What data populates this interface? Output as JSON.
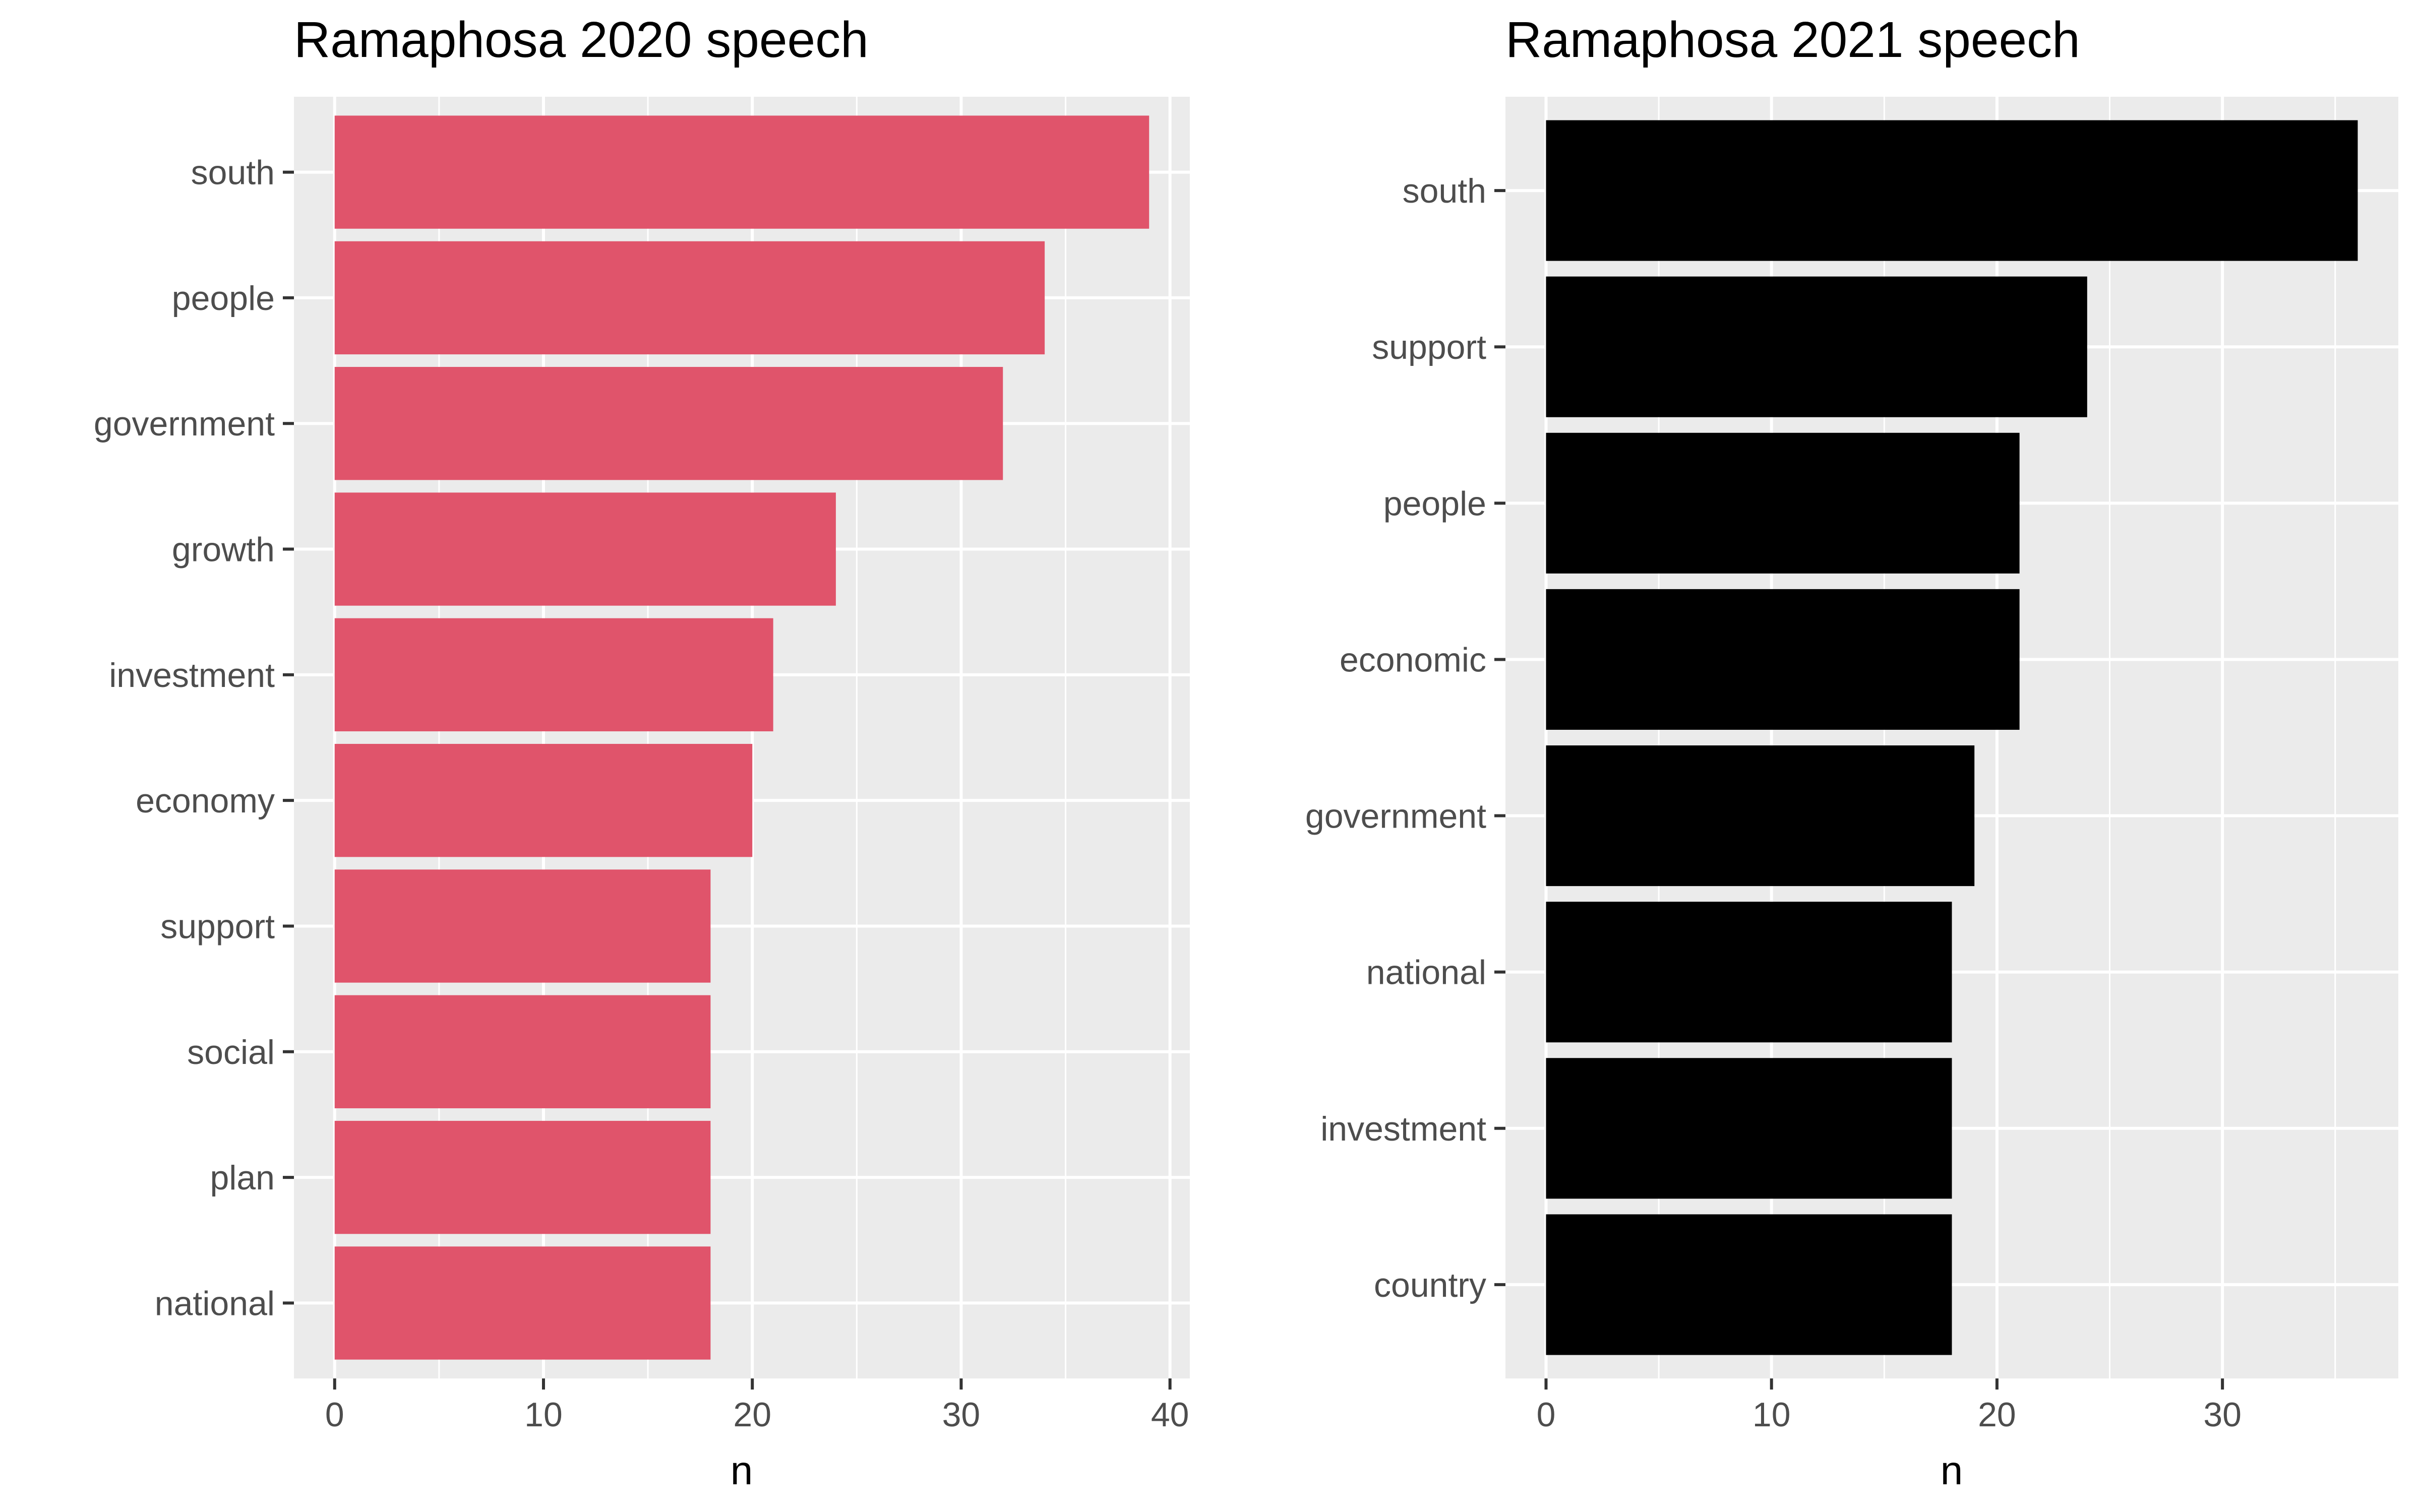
{
  "chart_data": [
    {
      "type": "bar",
      "orientation": "horizontal",
      "title": "Ramaphosa 2020 speech",
      "xlabel": "n",
      "ylabel": "",
      "categories": [
        "south",
        "people",
        "government",
        "growth",
        "investment",
        "economy",
        "support",
        "social",
        "plan",
        "national"
      ],
      "values": [
        39,
        34,
        32,
        24,
        21,
        20,
        18,
        18,
        18,
        18
      ],
      "xlim": [
        -1.95,
        40.95
      ],
      "x_ticks": [
        0,
        10,
        20,
        30,
        40
      ],
      "grid": true,
      "bar_color": "#E0546B",
      "panel_color": "#EBEBEB"
    },
    {
      "type": "bar",
      "orientation": "horizontal",
      "title": "Ramaphosa 2021 speech",
      "xlabel": "n",
      "ylabel": "",
      "categories": [
        "south",
        "support",
        "people",
        "economic",
        "government",
        "national",
        "investment",
        "country"
      ],
      "values": [
        36,
        24,
        21,
        21,
        19,
        18,
        18,
        18
      ],
      "xlim": [
        -1.8,
        37.8
      ],
      "x_ticks": [
        0,
        10,
        20,
        30
      ],
      "grid": true,
      "bar_color": "#000000",
      "panel_color": "#EBEBEB"
    }
  ]
}
